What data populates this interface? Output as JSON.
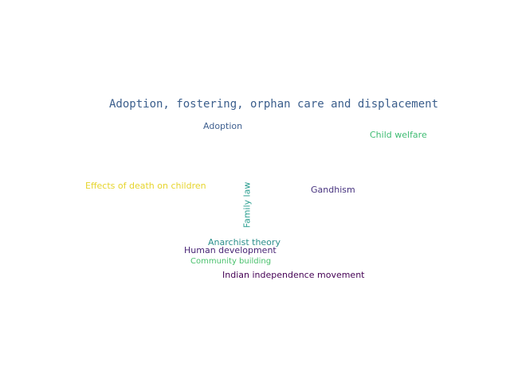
{
  "words": [
    {
      "id": "adoption-fostering",
      "text": "Adoption, fostering, orphan care and displacement",
      "color": "#3b5e8c"
    },
    {
      "id": "adoption",
      "text": "Adoption",
      "color": "#3e5f8f"
    },
    {
      "id": "child-welfare",
      "text": "Child welfare",
      "color": "#3fbc73"
    },
    {
      "id": "effects-of-death",
      "text": "Effects of death on children",
      "color": "#e6d42b"
    },
    {
      "id": "family-law",
      "text": "Family law",
      "color": "#2a9d8f"
    },
    {
      "id": "gandhism",
      "text": "Gandhism",
      "color": "#46327e"
    },
    {
      "id": "anarchist-theory",
      "text": "Anarchist theory",
      "color": "#2c8f8c"
    },
    {
      "id": "human-development",
      "text": "Human development",
      "color": "#482475"
    },
    {
      "id": "community-building",
      "text": "Community building",
      "color": "#4ac16d"
    },
    {
      "id": "indian-independence",
      "text": "Indian independence movement",
      "color": "#440154"
    }
  ]
}
